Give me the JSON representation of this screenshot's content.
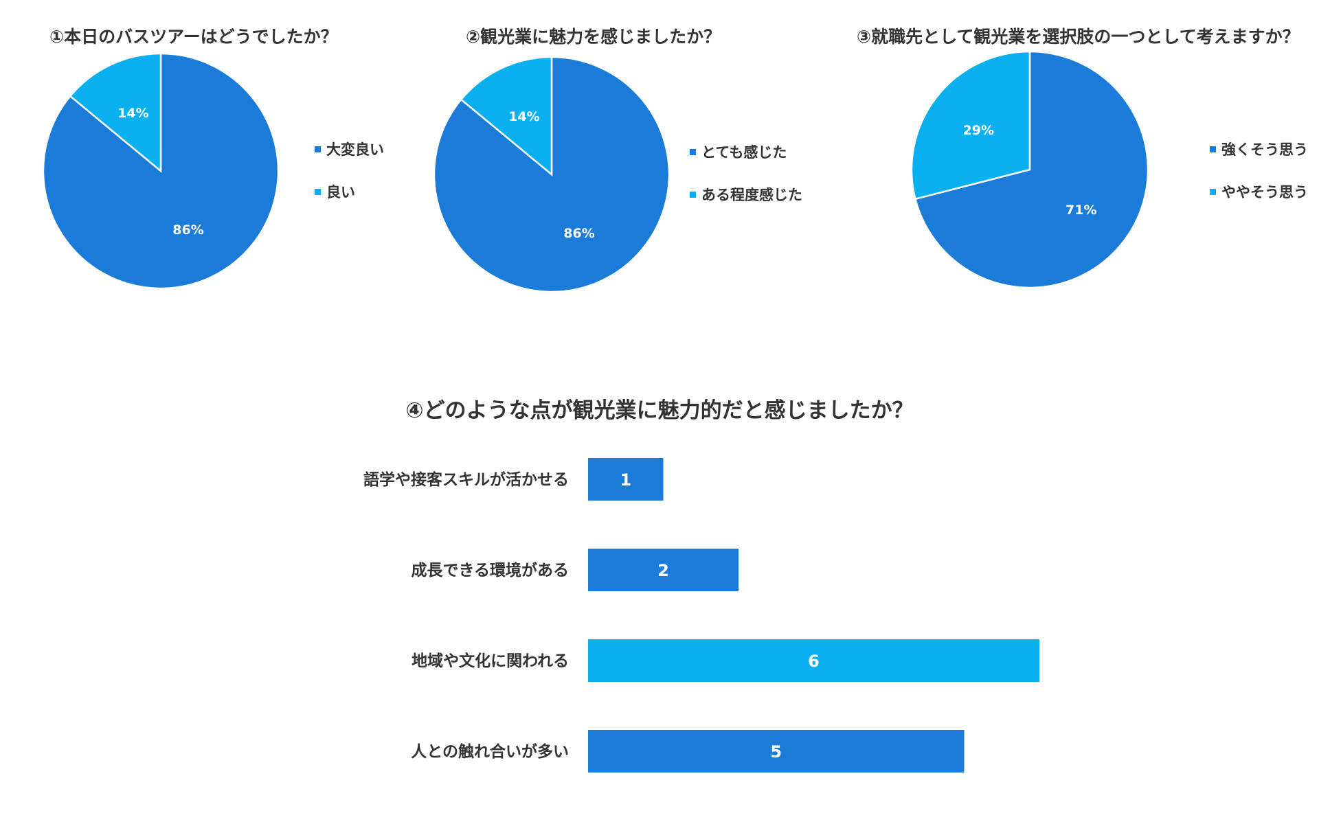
{
  "colors": {
    "primary": "#1a7cd8",
    "secondary": "#08b0f0"
  },
  "chart_data": [
    {
      "type": "pie",
      "title": "①本日のバスツアーはどうでしたか？",
      "slices": [
        {
          "label": "大変良い",
          "value": 86,
          "display": "86%",
          "color": "#1a7cd8"
        },
        {
          "label": "良い",
          "value": 14,
          "display": "14%",
          "color": "#08b0f0"
        }
      ],
      "legend": "right"
    },
    {
      "type": "pie",
      "title": "②観光業に魅力を感じましたか？",
      "slices": [
        {
          "label": "とても感じた",
          "value": 86,
          "display": "86%",
          "color": "#1a7cd8"
        },
        {
          "label": "ある程度感じた",
          "value": 14,
          "display": "14%",
          "color": "#08b0f0"
        }
      ],
      "legend": "right"
    },
    {
      "type": "pie",
      "title": "③就職先として観光業を選択肢の一つとして考えますか？",
      "slices": [
        {
          "label": "強くそう思う",
          "value": 71,
          "display": "71%",
          "color": "#1a7cd8"
        },
        {
          "label": "ややそう思う",
          "value": 29,
          "display": "29%",
          "color": "#08b0f0"
        }
      ],
      "legend": "right"
    },
    {
      "type": "bar",
      "orientation": "horizontal",
      "title": "④どのような点が観光業に魅力的だと感じましたか？",
      "categories": [
        "語学や接客スキルが活かせる",
        "成長できる環境がある",
        "地域や文化に関われる",
        "人との触れ合いが多い"
      ],
      "values": [
        1,
        2,
        6,
        5
      ],
      "bar_colors": [
        "#1a7cd8",
        "#1a7cd8",
        "#08b0f0",
        "#1a7cd8"
      ],
      "xlim": [
        0,
        6
      ],
      "grid": false,
      "data_labels": true
    }
  ]
}
